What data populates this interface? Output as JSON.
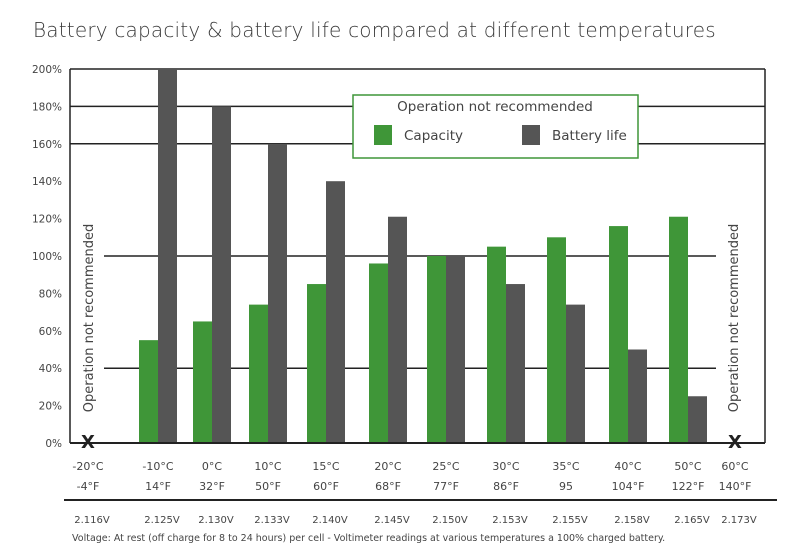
{
  "chart_data": {
    "type": "bar",
    "title": "Battery capacity & battery life compared at different temperatures",
    "xlabel": "",
    "ylabel": "",
    "ylim": [
      0,
      200
    ],
    "yticks": [
      "0%",
      "20%",
      "40%",
      "60%",
      "80%",
      "100%",
      "120%",
      "140%",
      "160%",
      "180%",
      "200%"
    ],
    "grid_lines_percent": [
      40,
      100,
      160,
      180,
      200
    ],
    "categories_c": [
      "-20°C",
      "-10°C",
      "0°C",
      "10°C",
      "15°C",
      "20°C",
      "25°C",
      "30°C",
      "35°C",
      "40°C",
      "50°C",
      "60°C"
    ],
    "categories_f": [
      "-4°F",
      "14°F",
      "32°F",
      "50°F",
      "60°F",
      "68°F",
      "77°F",
      "86°F",
      "95",
      "104°F",
      "122°F",
      "140°F"
    ],
    "voltages": [
      "2.116V",
      "2.125V",
      "2.130V",
      "2.133V",
      "2.140V",
      "2.145V",
      "2.150V",
      "2.153V",
      "2.155V",
      "2.158V",
      "2.165V",
      "2.173V"
    ],
    "series": [
      {
        "name": "Capacity",
        "color": "#3f9638",
        "values": [
          null,
          55,
          65,
          74,
          85,
          96,
          100,
          105,
          110,
          116,
          121,
          null
        ]
      },
      {
        "name": "Battery life",
        "color": "#555555",
        "values": [
          null,
          200,
          180,
          160,
          140,
          121,
          100,
          85,
          74,
          50,
          25,
          null
        ]
      }
    ],
    "not_recommended_marker": "X",
    "not_recommended_text": "Operation not recommended",
    "legend": {
      "title": "Operation not recommended",
      "position": "top-right",
      "border_color": "#3f9638",
      "entries": [
        "Capacity",
        "Battery life"
      ]
    },
    "footnote": "Voltage: At rest (off charge for 8 to 24 hours) per cell - Voltimeter readings at various temperatures a 100% charged battery."
  }
}
